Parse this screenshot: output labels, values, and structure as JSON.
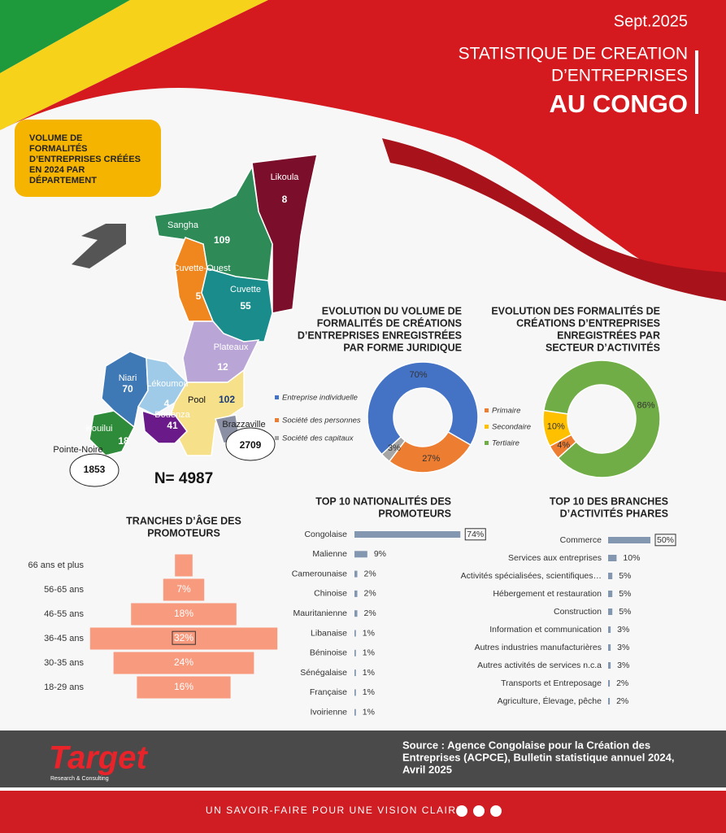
{
  "header": {
    "date": "Sept.2025",
    "title_lines": [
      "STATISTIQUE DE CREATION",
      "D’ENTREPRISES"
    ],
    "title_strong": "AU CONGO"
  },
  "map": {
    "title_lines": [
      "VOLUME DE",
      "FORMALITÉS",
      "D’ENTREPRISES CRÉÉES",
      "EN 2024 PAR",
      "DÉPARTEMENT"
    ],
    "regions": [
      {
        "name": "Likoula",
        "value": 8
      },
      {
        "name": "Sangha",
        "value": 109
      },
      {
        "name": "Cuvette-Ouest",
        "value": 5
      },
      {
        "name": "Cuvette",
        "value": 55
      },
      {
        "name": "Plateaux",
        "value": 12
      },
      {
        "name": "Niari",
        "value": 70
      },
      {
        "name": "Lékoumou",
        "value": 4
      },
      {
        "name": "Pool",
        "value": 102
      },
      {
        "name": "Bouenza",
        "value": 41
      },
      {
        "name": "Kouilui",
        "value": 18
      },
      {
        "name": "Brazzaville",
        "value": 2709
      },
      {
        "name": "Pointe-Noire",
        "value": 1853
      }
    ],
    "total": "N= 4987"
  },
  "chart_data": [
    {
      "type": "donut",
      "title": [
        "EVOLUTION DU VOLUME DE",
        "FORMALITÉS DE CRÉATIONS",
        "D’ENTREPRISES ENREGISTRÉES",
        "PAR FORME JURIDIQUE"
      ],
      "categories": [
        "Entreprise individuelle",
        "Société des personnes",
        "Société des capitaux"
      ],
      "values": [
        70,
        27,
        3
      ],
      "value_labels": [
        "70%",
        "27%",
        "3%"
      ],
      "colors": [
        "#4472c4",
        "#ed7d31",
        "#a5a5a5"
      ]
    },
    {
      "type": "donut",
      "title": [
        "EVOLUTION DES FORMALITÉS DE",
        "CRÉATIONS D’ENTREPRISES",
        "ENREGISTRÉES PAR",
        "SECTEUR D’ACTIVITÉS"
      ],
      "categories": [
        "Primaire",
        "Secondaire",
        "Tertiaire"
      ],
      "values": [
        4,
        10,
        86
      ],
      "value_labels": [
        "4%",
        "10%",
        "86%"
      ],
      "colors": [
        "#ed7d31",
        "#ffc000",
        "#70ad47"
      ]
    },
    {
      "type": "bar",
      "title": [
        "TOP 10  NATIONALITÉS DES",
        "PROMOTEURS"
      ],
      "categories": [
        "Congolaise",
        "Malienne",
        "Camerounaise",
        "Chinoise",
        "Mauritanienne",
        "Libanaise",
        "Béninoise",
        "Sénégalaise",
        "Française",
        "Ivoirienne"
      ],
      "values": [
        74,
        9,
        2,
        2,
        2,
        1,
        1,
        1,
        1,
        1
      ],
      "value_labels": [
        "74%",
        "9%",
        "2%",
        "2%",
        "2%",
        "1%",
        "1%",
        "1%",
        "1%",
        "1%"
      ],
      "color": "#8497b0",
      "highlight": 0
    },
    {
      "type": "bar",
      "title": [
        "TOP 10 DES BRANCHES",
        "D’ACTIVITÉS PHARES"
      ],
      "categories": [
        "Commerce",
        "Services aux entreprises",
        "Activités spécialisées, scientifiques…",
        "Hébergement et restauration",
        "Construction",
        "Information et communication",
        "Autres industries manufacturières",
        "Autres activités de services n.c.a",
        "Transports et Entreposage",
        "Agriculture, Élevage, pêche"
      ],
      "values": [
        50,
        10,
        5,
        5,
        5,
        3,
        3,
        3,
        2,
        2
      ],
      "value_labels": [
        "50%",
        "10%",
        "5%",
        "5%",
        "5%",
        "3%",
        "3%",
        "3%",
        "2%",
        "2%"
      ],
      "color": "#8497b0",
      "highlight": 0
    },
    {
      "type": "pyramid",
      "title": [
        "TRANCHES D’ÂGE DES",
        "PROMOTEURS"
      ],
      "categories": [
        "66 ans et plus",
        "56-65 ans",
        "46-55 ans",
        "36-45 ans",
        "30-35 ans",
        "18-29 ans"
      ],
      "values": [
        3,
        7,
        18,
        32,
        24,
        16
      ],
      "value_labels": [
        null,
        "7%",
        "18%",
        "32%",
        "24%",
        "16%"
      ],
      "color": "#f79a7e",
      "highlight": 3
    }
  ],
  "footer": {
    "logo": "Target",
    "logo_sub": "Research & Consulting",
    "source_lines": [
      "Source : Agence Congolaise pour la Création des",
      "Entreprises (ACPCE), Bulletin statistique annuel 2024,",
      "Avril 2025"
    ],
    "tagline": "UN SAVOIR-FAIRE POUR UNE VISION CLAIRE"
  }
}
